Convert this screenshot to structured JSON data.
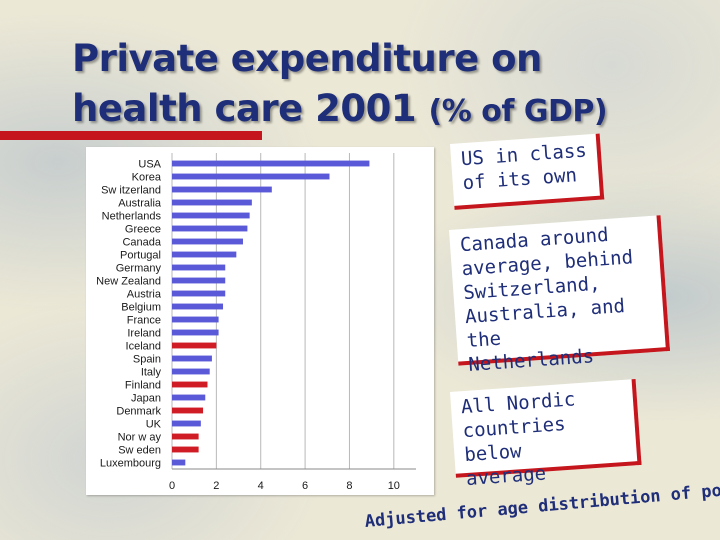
{
  "slide": {
    "title_line1": "Private expenditure on",
    "title_line2_main": "health care 2001",
    "title_line2_sub": "(% of GDP)",
    "callouts": [
      "US in class\nof its own",
      "Canada around\naverage, behind\nSwitzerland,\nAustralia, and the\nNetherlands",
      "All Nordic\ncountries below\naverage"
    ],
    "footnote": "Adjusted for age distribution of popula"
  },
  "colors": {
    "title": "#1f2e78",
    "accent_red": "#c4161c",
    "bar_default": "#5a5ad8",
    "bar_highlight": "#d01c24"
  },
  "chart_data": {
    "type": "bar",
    "orientation": "horizontal",
    "title": "",
    "xlabel": "",
    "ylabel": "",
    "xlim": [
      0,
      11
    ],
    "x_ticks": [
      0,
      2,
      4,
      6,
      8,
      10
    ],
    "grid": true,
    "categories": [
      "USA",
      "Korea",
      "Sw itzerland",
      "Australia",
      "Netherlands",
      "Greece",
      "Canada",
      "Portugal",
      "Germany",
      "New Zealand",
      "Austria",
      "Belgium",
      "France",
      "Ireland",
      "Iceland",
      "Spain",
      "Italy",
      "Finland",
      "Japan",
      "Denmark",
      "UK",
      "Nor w ay",
      "Sw eden",
      "Luxembourg"
    ],
    "values": [
      8.9,
      7.1,
      4.5,
      3.6,
      3.5,
      3.4,
      3.2,
      2.9,
      2.4,
      2.4,
      2.4,
      2.3,
      2.1,
      2.1,
      2.0,
      1.8,
      1.7,
      1.6,
      1.5,
      1.4,
      1.3,
      1.2,
      1.2,
      0.6
    ],
    "highlighted": [
      "Iceland",
      "Finland",
      "Denmark",
      "Nor w ay",
      "Sw eden"
    ]
  }
}
